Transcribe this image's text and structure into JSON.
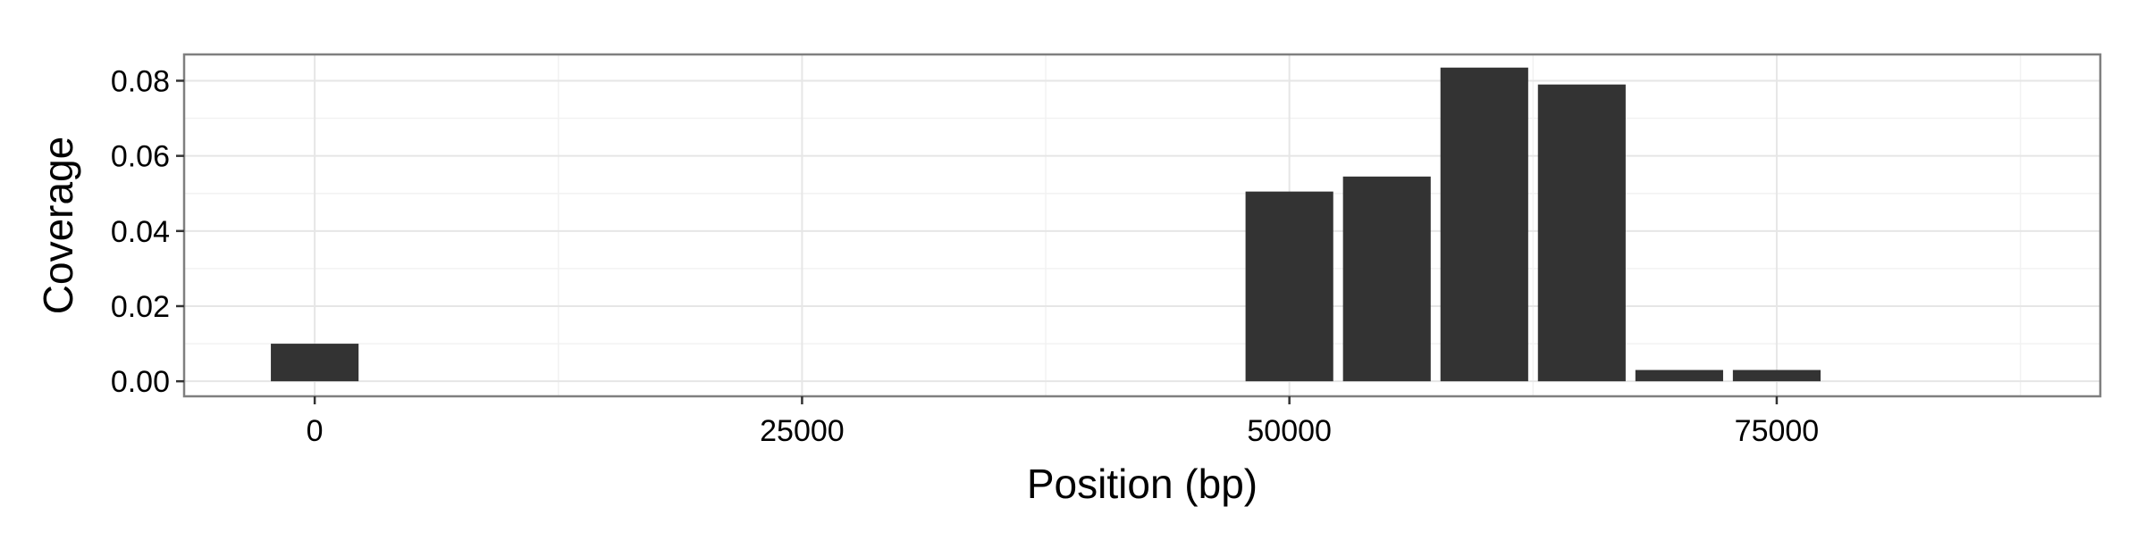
{
  "chart_data": {
    "type": "bar",
    "xlabel": "Position (bp)",
    "ylabel": "Coverage",
    "x": [
      0,
      50000,
      55000,
      60000,
      65000,
      70000,
      75000
    ],
    "values": [
      0.01,
      0.0505,
      0.0545,
      0.0835,
      0.079,
      0.003,
      0.003
    ],
    "bar_width": 4500,
    "xlim": [
      -6700,
      91600
    ],
    "ylim": [
      -0.004,
      0.087
    ],
    "x_ticks": [
      {
        "value": 0,
        "label": "0"
      },
      {
        "value": 25000,
        "label": "25000"
      },
      {
        "value": 50000,
        "label": "50000"
      },
      {
        "value": 75000,
        "label": "75000"
      }
    ],
    "y_ticks": [
      {
        "value": 0.0,
        "label": "0.00"
      },
      {
        "value": 0.02,
        "label": "0.02"
      },
      {
        "value": 0.04,
        "label": "0.04"
      },
      {
        "value": 0.06,
        "label": "0.06"
      },
      {
        "value": 0.08,
        "label": "0.08"
      }
    ],
    "x_minor_ticks": [
      12500,
      37500,
      62500,
      87500
    ],
    "y_minor_ticks": [
      0.01,
      0.03,
      0.05,
      0.07
    ],
    "grid": true,
    "colors": {
      "bar": "#333333",
      "grid_major": "#e6e6e6",
      "grid_minor": "#f2f2f2",
      "panel_border": "#7f7f7f"
    }
  }
}
